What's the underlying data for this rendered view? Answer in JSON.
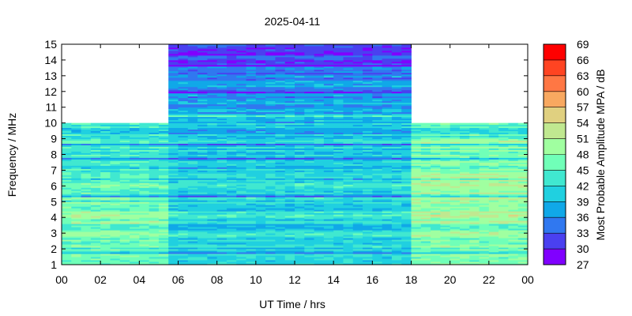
{
  "chart_data": {
    "type": "heatmap",
    "title": "2025-04-11",
    "xlabel": "UT Time / hrs",
    "ylabel": "Frequency / MHz",
    "xlim": [
      0,
      24
    ],
    "ylim": [
      1,
      15
    ],
    "x_tick_labels": [
      "00",
      "02",
      "04",
      "06",
      "08",
      "10",
      "12",
      "14",
      "16",
      "18",
      "20",
      "22",
      "00"
    ],
    "y_tick_labels": [
      "1",
      "2",
      "3",
      "4",
      "5",
      "6",
      "7",
      "8",
      "9",
      "10",
      "11",
      "12",
      "13",
      "14",
      "15"
    ],
    "colorbar": {
      "label": "Most Probable Amplitude MPA / dB",
      "range": [
        27,
        69
      ],
      "tick_labels": [
        "27",
        "30",
        "33",
        "36",
        "39",
        "42",
        "45",
        "48",
        "51",
        "54",
        "57",
        "60",
        "63",
        "66",
        "69"
      ],
      "colors": [
        "#8000ff",
        "#4a40f0",
        "#3078f0",
        "#10a8e8",
        "#20d0e0",
        "#40e8d0",
        "#70ffb8",
        "#a0ffa0",
        "#c0e890",
        "#e0d080",
        "#f8a860",
        "#ff7744",
        "#ff4422",
        "#ff0000"
      ]
    },
    "time_segments_hrs": [
      [
        0,
        5.5
      ],
      [
        5.5,
        18
      ],
      [
        18,
        24
      ]
    ],
    "bands": [
      {
        "f": [
          1,
          2
        ],
        "values_db": [
          45,
          40,
          46
        ]
      },
      {
        "f": [
          2,
          3
        ],
        "values_db": [
          46,
          41,
          47
        ]
      },
      {
        "f": [
          3,
          4
        ],
        "values_db": [
          47,
          41,
          48
        ]
      },
      {
        "f": [
          4,
          5
        ],
        "values_db": [
          48,
          42,
          50
        ]
      },
      {
        "f": [
          5,
          6
        ],
        "values_db": [
          45,
          41,
          49
        ]
      },
      {
        "f": [
          6,
          7
        ],
        "values_db": [
          44,
          41,
          49
        ]
      },
      {
        "f": [
          7,
          8
        ],
        "values_db": [
          44,
          41,
          48
        ]
      },
      {
        "f": [
          8,
          9
        ],
        "values_db": [
          43,
          40,
          47
        ]
      },
      {
        "f": [
          9,
          10
        ],
        "values_db": [
          42,
          39,
          44
        ]
      },
      {
        "f": [
          10,
          11
        ],
        "values_db": [
          null,
          38,
          null
        ]
      },
      {
        "f": [
          11,
          12
        ],
        "values_db": [
          null,
          37,
          null
        ]
      },
      {
        "f": [
          12,
          13
        ],
        "values_db": [
          null,
          36,
          null
        ]
      },
      {
        "f": [
          13,
          14
        ],
        "values_db": [
          null,
          33,
          null
        ]
      },
      {
        "f": [
          14,
          15
        ],
        "values_db": [
          null,
          31,
          null
        ]
      }
    ]
  }
}
